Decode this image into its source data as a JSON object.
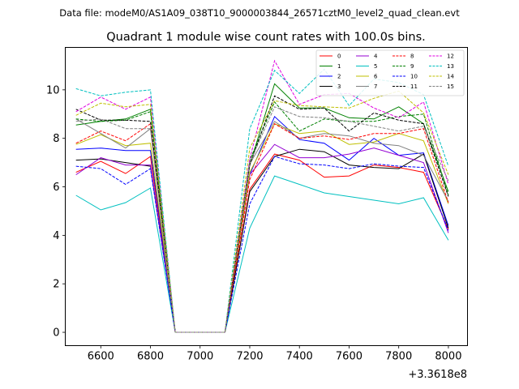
{
  "figure": {
    "suptitle": "Data file: modeM0/AS1A09_038T10_9000003844_26571cztM0_level2_quad_clean.evt"
  },
  "chart_data": {
    "type": "line",
    "title": "Quadrant 1 module wise count rates with 100.0s bins.",
    "xlabel": "",
    "ylabel": "",
    "x_offset_label": "+3.3618e8",
    "x": [
      6500,
      6600,
      6700,
      6800,
      6900,
      7000,
      7100,
      7200,
      7300,
      7400,
      7500,
      7600,
      7700,
      7800,
      7900,
      8000
    ],
    "xlim": [
      6457,
      8077
    ],
    "ylim": [
      -0.55,
      11.75
    ],
    "xticks": [
      6600,
      6800,
      7000,
      7200,
      7400,
      7600,
      7800,
      8000
    ],
    "yticks": [
      0,
      2,
      4,
      6,
      8,
      10
    ],
    "grid": false,
    "legend": {
      "placement": "top-right",
      "columns": 4
    },
    "series": [
      {
        "name": "0",
        "color": "#ff0000",
        "dash": "solid",
        "values": [
          6.6,
          7.05,
          6.55,
          7.25,
          0,
          0,
          0,
          5.9,
          7.35,
          7.1,
          6.4,
          6.45,
          6.9,
          6.8,
          6.6,
          4.25
        ]
      },
      {
        "name": "1",
        "color": "#008000",
        "dash": "solid",
        "values": [
          8.55,
          8.7,
          8.8,
          9.2,
          0,
          0,
          0,
          6.9,
          10.25,
          9.25,
          9.25,
          8.85,
          8.8,
          9.3,
          8.6,
          5.8
        ]
      },
      {
        "name": "2",
        "color": "#0000ff",
        "dash": "solid",
        "values": [
          7.55,
          7.6,
          7.5,
          7.5,
          0,
          0,
          0,
          6.5,
          8.9,
          7.95,
          7.8,
          7.1,
          8.0,
          7.3,
          7.4,
          4.4
        ]
      },
      {
        "name": "3",
        "color": "#000000",
        "dash": "solid",
        "values": [
          7.1,
          7.15,
          7.0,
          6.85,
          0,
          0,
          0,
          5.8,
          7.25,
          7.55,
          7.45,
          6.9,
          6.8,
          6.75,
          7.35,
          4.3
        ]
      },
      {
        "name": "4",
        "color": "#9400d3",
        "dash": "solid",
        "values": [
          6.5,
          7.2,
          6.9,
          6.9,
          0,
          0,
          0,
          6.5,
          7.75,
          7.2,
          7.2,
          7.35,
          7.6,
          7.3,
          7.0,
          4.1
        ]
      },
      {
        "name": "5",
        "color": "#00c0c0",
        "dash": "solid",
        "values": [
          5.65,
          5.05,
          5.35,
          5.95,
          0,
          0,
          0,
          4.3,
          6.45,
          6.1,
          5.75,
          5.6,
          5.45,
          5.3,
          5.55,
          3.8
        ]
      },
      {
        "name": "6",
        "color": "#bfbf00",
        "dash": "solid",
        "values": [
          7.75,
          8.15,
          7.7,
          7.8,
          0,
          0,
          0,
          6.6,
          8.6,
          8.2,
          8.3,
          7.75,
          7.85,
          8.2,
          7.9,
          5.3
        ]
      },
      {
        "name": "7",
        "color": "#808080",
        "dash": "solid",
        "values": [
          8.8,
          8.2,
          7.6,
          8.4,
          0,
          0,
          0,
          6.95,
          8.7,
          8.0,
          8.2,
          8.1,
          7.8,
          7.7,
          7.3,
          5.4
        ]
      },
      {
        "name": "8",
        "color": "#ff0000",
        "dash": "dashed",
        "values": [
          7.8,
          8.3,
          7.9,
          8.6,
          0,
          0,
          0,
          6.3,
          8.6,
          8.0,
          8.1,
          7.95,
          8.2,
          8.2,
          8.4,
          5.35
        ]
      },
      {
        "name": "9",
        "color": "#008000",
        "dash": "dashed",
        "values": [
          8.8,
          8.7,
          8.75,
          9.1,
          0,
          0,
          0,
          7.1,
          9.5,
          8.3,
          8.8,
          8.7,
          8.7,
          8.9,
          9.0,
          5.65
        ]
      },
      {
        "name": "10",
        "color": "#0000ff",
        "dash": "dashed",
        "values": [
          6.85,
          6.75,
          6.1,
          6.75,
          0,
          0,
          0,
          5.3,
          7.25,
          6.95,
          6.9,
          6.75,
          6.95,
          6.85,
          6.8,
          4.2
        ]
      },
      {
        "name": "11",
        "color": "#000000",
        "dash": "dashed",
        "values": [
          9.2,
          8.75,
          8.75,
          8.7,
          0,
          0,
          0,
          6.9,
          9.75,
          9.2,
          9.25,
          8.3,
          9.05,
          8.75,
          8.6,
          5.6
        ]
      },
      {
        "name": "12",
        "color": "#e000e0",
        "dash": "dashed",
        "values": [
          9.1,
          9.7,
          9.2,
          9.7,
          0,
          0,
          0,
          7.15,
          11.2,
          9.4,
          9.8,
          9.85,
          9.25,
          8.85,
          9.5,
          6.1
        ]
      },
      {
        "name": "13",
        "color": "#00c0c0",
        "dash": "dashed",
        "values": [
          10.05,
          9.75,
          9.9,
          10.0,
          0,
          0,
          0,
          8.4,
          10.8,
          9.85,
          10.85,
          9.35,
          10.45,
          10.3,
          9.8,
          6.85
        ]
      },
      {
        "name": "14",
        "color": "#bfbf00",
        "dash": "dashed",
        "values": [
          8.95,
          9.45,
          9.3,
          9.4,
          0,
          0,
          0,
          7.6,
          9.55,
          9.35,
          9.3,
          9.25,
          9.65,
          9.95,
          9.05,
          6.5
        ]
      },
      {
        "name": "15",
        "color": "#808080",
        "dash": "dashed",
        "values": [
          8.7,
          8.8,
          8.4,
          8.4,
          0,
          0,
          0,
          7.0,
          9.3,
          8.9,
          8.85,
          8.7,
          8.5,
          8.3,
          8.5,
          6.25
        ]
      }
    ]
  }
}
